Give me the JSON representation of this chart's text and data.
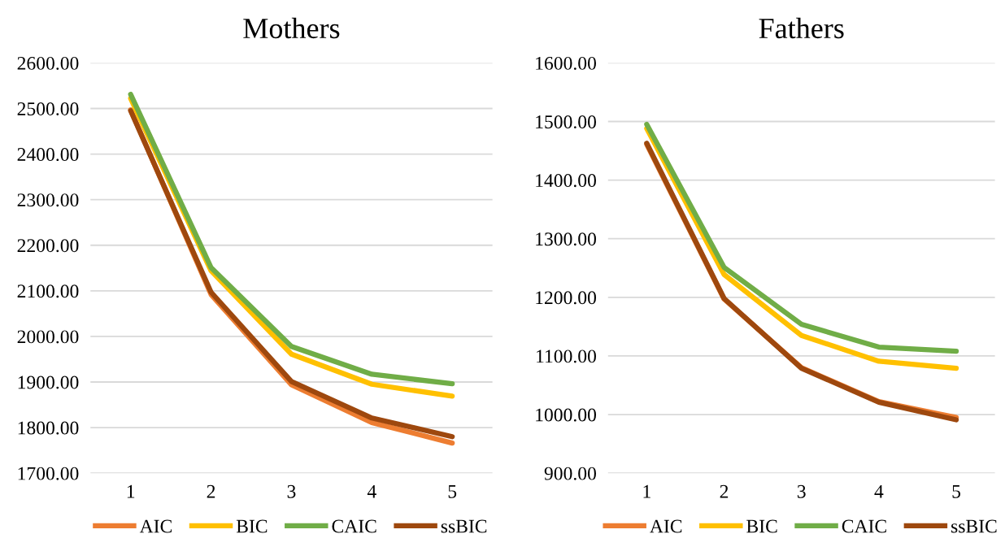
{
  "chart_data": [
    {
      "type": "line",
      "title": "Mothers",
      "categories": [
        "1",
        "2",
        "3",
        "4",
        "5"
      ],
      "ylim": [
        1700,
        2600
      ],
      "yticks": [
        {
          "value": 1700,
          "label": "1700.00"
        },
        {
          "value": 1800,
          "label": "1800.00"
        },
        {
          "value": 1900,
          "label": "1900.00"
        },
        {
          "value": 2000,
          "label": "2000.00"
        },
        {
          "value": 2100,
          "label": "2100.00"
        },
        {
          "value": 2200,
          "label": "2200.00"
        },
        {
          "value": 2300,
          "label": "2300.00"
        },
        {
          "value": 2400,
          "label": "2400.00"
        },
        {
          "value": 2500,
          "label": "2500.00"
        },
        {
          "value": 2600,
          "label": "2600.00"
        }
      ],
      "grid": "y",
      "legend": "bottom",
      "marker": "none",
      "line_style": "solid",
      "series": [
        {
          "name": "AIC",
          "color": "#ed7d31",
          "values": [
            2497,
            2092,
            1894,
            1811,
            1766
          ]
        },
        {
          "name": "BIC",
          "color": "#ffc000",
          "values": [
            2522,
            2144,
            1961,
            1895,
            1869
          ]
        },
        {
          "name": "CAIC",
          "color": "#70ad47",
          "values": [
            2531,
            2151,
            1978,
            1917,
            1896
          ]
        },
        {
          "name": "ssBIC",
          "color": "#9e480e",
          "values": [
            2495,
            2097,
            1901,
            1821,
            1780
          ]
        }
      ]
    },
    {
      "type": "line",
      "title": "Fathers",
      "categories": [
        "1",
        "2",
        "3",
        "4",
        "5"
      ],
      "ylim": [
        900,
        1600
      ],
      "yticks": [
        {
          "value": 900,
          "label": "900.00"
        },
        {
          "value": 1000,
          "label": "1000.00"
        },
        {
          "value": 1100,
          "label": "1100.00"
        },
        {
          "value": 1200,
          "label": "1200.00"
        },
        {
          "value": 1300,
          "label": "1300.00"
        },
        {
          "value": 1400,
          "label": "1400.00"
        },
        {
          "value": 1500,
          "label": "1500.00"
        },
        {
          "value": 1600,
          "label": "1600.00"
        }
      ],
      "grid": "y",
      "legend": "bottom",
      "marker": "none",
      "line_style": "solid",
      "series": [
        {
          "name": "AIC",
          "color": "#ed7d31",
          "values": [
            1461,
            1197,
            1080,
            1022,
            995
          ]
        },
        {
          "name": "BIC",
          "color": "#ffc000",
          "values": [
            1488,
            1239,
            1135,
            1091,
            1079
          ]
        },
        {
          "name": "CAIC",
          "color": "#70ad47",
          "values": [
            1495,
            1251,
            1154,
            1115,
            1108
          ]
        },
        {
          "name": "ssBIC",
          "color": "#9e480e",
          "values": [
            1463,
            1198,
            1079,
            1021,
            991
          ]
        }
      ]
    }
  ]
}
